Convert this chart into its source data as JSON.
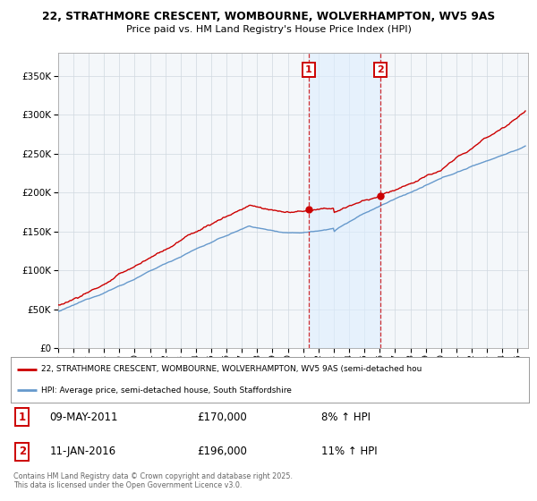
{
  "title1": "22, STRATHMORE CRESCENT, WOMBOURNE, WOLVERHAMPTON, WV5 9AS",
  "title2": "Price paid vs. HM Land Registry's House Price Index (HPI)",
  "ylabel_ticks": [
    0,
    50000,
    100000,
    150000,
    200000,
    250000,
    300000,
    350000
  ],
  "ylim": [
    0,
    380000
  ],
  "xlim_start": 1995.0,
  "xlim_end": 2025.7,
  "line1_color": "#cc0000",
  "line2_color": "#6699cc",
  "line1_label": "22, STRATHMORE CRESCENT, WOMBOURNE, WOLVERHAMPTON, WV5 9AS (semi-detached hou",
  "line2_label": "HPI: Average price, semi-detached house, South Staffordshire",
  "marker1_x": 2011.35,
  "marker1_label": "1",
  "marker1_date": "09-MAY-2011",
  "marker1_price": "£170,000",
  "marker1_hpi": "8% ↑ HPI",
  "marker1_value": 170000,
  "marker2_x": 2016.04,
  "marker2_label": "2",
  "marker2_date": "11-JAN-2016",
  "marker2_price": "£196,000",
  "marker2_hpi": "11% ↑ HPI",
  "marker2_value": 196000,
  "footnote": "Contains HM Land Registry data © Crown copyright and database right 2025.\nThis data is licensed under the Open Government Licence v3.0.",
  "bg_color": "#ffffff",
  "grid_color": "#d0d8e0",
  "plot_bg": "#f4f7fa"
}
